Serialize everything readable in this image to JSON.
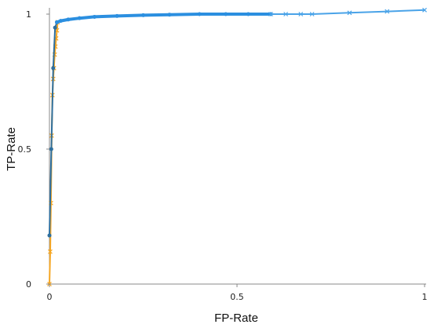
{
  "chart_data": {
    "type": "line",
    "xlabel": "FP-Rate",
    "ylabel": "TP-Rate",
    "xlim": [
      0,
      1
    ],
    "ylim": [
      0,
      1
    ],
    "x_ticks": [
      {
        "value": 0,
        "label": "0"
      },
      {
        "value": 0.5,
        "label": "0.5"
      },
      {
        "value": 1,
        "label": "1"
      }
    ],
    "y_ticks": [
      {
        "value": 0,
        "label": "0"
      },
      {
        "value": 0.5,
        "label": "0.5"
      },
      {
        "value": 1,
        "label": "1"
      }
    ],
    "grid": false,
    "series": [
      {
        "color": "#f5a623",
        "marker": "x",
        "points": [
          [
            0.0,
            0.0
          ],
          [
            0.002,
            0.12
          ],
          [
            0.004,
            0.3
          ],
          [
            0.006,
            0.55
          ],
          [
            0.008,
            0.7
          ],
          [
            0.01,
            0.76
          ],
          [
            0.012,
            0.8
          ],
          [
            0.014,
            0.85
          ],
          [
            0.016,
            0.88
          ],
          [
            0.018,
            0.91
          ],
          [
            0.02,
            0.94
          ],
          [
            0.022,
            0.97
          ]
        ]
      },
      {
        "color": "#2e6f9e",
        "marker": "o",
        "points": [
          [
            0.0,
            0.18
          ],
          [
            0.005,
            0.5
          ],
          [
            0.01,
            0.8
          ],
          [
            0.015,
            0.95
          ],
          [
            0.02,
            0.97
          ]
        ]
      },
      {
        "color": "#2b8fe0",
        "marker": "o",
        "points": [
          [
            0.02,
            0.97
          ],
          [
            0.03,
            0.975
          ],
          [
            0.05,
            0.98
          ],
          [
            0.08,
            0.985
          ],
          [
            0.12,
            0.99
          ],
          [
            0.18,
            0.993
          ],
          [
            0.25,
            0.996
          ],
          [
            0.32,
            0.998
          ],
          [
            0.4,
            1.0
          ],
          [
            0.47,
            1.0
          ],
          [
            0.53,
            1.0
          ],
          [
            0.59,
            1.0
          ]
        ]
      },
      {
        "color": "#4aa3e8",
        "marker": "x",
        "points": [
          [
            0.59,
            1.0
          ],
          [
            0.63,
            1.0
          ],
          [
            0.67,
            1.0
          ],
          [
            0.7,
            1.0
          ],
          [
            0.8,
            1.005
          ],
          [
            0.9,
            1.01
          ],
          [
            1.0,
            1.015
          ]
        ]
      }
    ]
  }
}
